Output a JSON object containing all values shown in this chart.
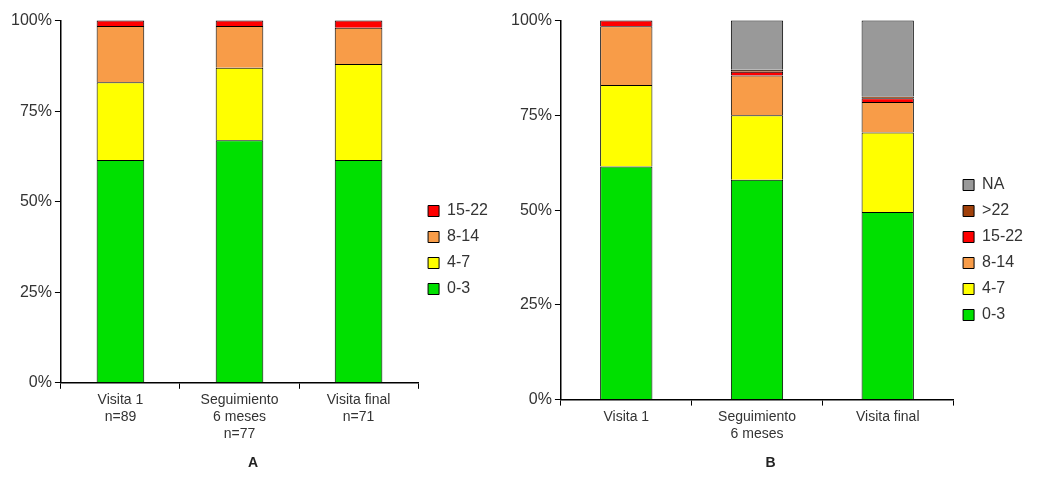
{
  "chart_data": [
    {
      "type": "bar",
      "title": "A",
      "stacked": true,
      "grid": false,
      "legend": "right",
      "categories": [
        "Visita 1\nn=89",
        "Seguimiento\n6 meses\nn=77",
        "Visita final\nn=71"
      ],
      "ylim": [
        0,
        100
      ],
      "yticks": [
        {
          "value": 0,
          "label": "0%"
        },
        {
          "value": 25,
          "label": "25%"
        },
        {
          "value": 50,
          "label": "50%"
        },
        {
          "value": 75,
          "label": "75%"
        },
        {
          "value": 100,
          "label": "100%"
        }
      ],
      "series": [
        {
          "name": "0-3",
          "color": "#00e000",
          "values": [
            61.5,
            67,
            61.5
          ]
        },
        {
          "name": "4-7",
          "color": "#ffff00",
          "values": [
            21.5,
            20,
            26.5
          ]
        },
        {
          "name": "8-14",
          "color": "#f89c48",
          "values": [
            15.5,
            11.5,
            10
          ]
        },
        {
          "name": "15-22",
          "color": "#ff0000",
          "values": [
            1.5,
            1.5,
            2
          ]
        }
      ]
    },
    {
      "type": "bar",
      "title": "B",
      "stacked": true,
      "grid": false,
      "legend": "right",
      "categories": [
        "Visita 1",
        "Seguimiento\n6 meses",
        "Visita final"
      ],
      "ylim": [
        0,
        100
      ],
      "yticks": [
        {
          "value": 0,
          "label": "0%"
        },
        {
          "value": 25,
          "label": "25%"
        },
        {
          "value": 50,
          "label": "50%"
        },
        {
          "value": 75,
          "label": "75%"
        },
        {
          "value": 100,
          "label": "100%"
        }
      ],
      "series": [
        {
          "name": "0-3",
          "color": "#00e000",
          "values": [
            61.5,
            58,
            49.5
          ]
        },
        {
          "name": "4-7",
          "color": "#ffff00",
          "values": [
            21.5,
            17,
            21
          ]
        },
        {
          "name": "8-14",
          "color": "#f89c48",
          "values": [
            15.5,
            10.5,
            8
          ]
        },
        {
          "name": "15-22",
          "color": "#ff0000",
          "values": [
            1.5,
            1,
            1
          ]
        },
        {
          "name": ">22",
          "color": "#a0400a",
          "values": [
            0,
            0.5,
            0.5
          ]
        },
        {
          "name": "NA",
          "color": "#999999",
          "values": [
            0,
            13,
            20
          ]
        }
      ]
    }
  ]
}
